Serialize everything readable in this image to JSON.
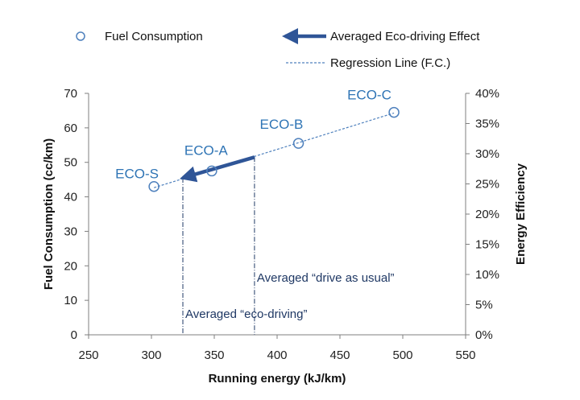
{
  "chart_data": {
    "type": "scatter",
    "title": "",
    "xlabel": "Running energy (kJ/km)",
    "ylabel": "Fuel Consumption (cc/km)",
    "y2label": "Energy Efficiency",
    "xlim": [
      250,
      550
    ],
    "ylim": [
      0,
      70
    ],
    "y2lim": [
      0,
      0.4
    ],
    "xticks": [
      "250",
      "300",
      "350",
      "400",
      "450",
      "500",
      "550"
    ],
    "yticks": [
      "0",
      "10",
      "20",
      "30",
      "40",
      "50",
      "60",
      "70"
    ],
    "y2ticks": [
      "0%",
      "5%",
      "10%",
      "15%",
      "20%",
      "25%",
      "30%",
      "35%",
      "40%"
    ],
    "series": [
      {
        "name": "Fuel Consumption",
        "points": [
          {
            "label": "ECO-S",
            "x": 302,
            "y": 43
          },
          {
            "label": "ECO-A",
            "x": 348,
            "y": 47.5
          },
          {
            "label": "ECO-B",
            "x": 417,
            "y": 55.5
          },
          {
            "label": "ECO-C",
            "x": 493,
            "y": 64.5
          }
        ]
      }
    ],
    "regression": {
      "name": "Regression Line (F.C.)",
      "x_start": 302,
      "x_end": 493
    },
    "effect_arrow": {
      "name": "Averaged Eco-driving Effect",
      "from": {
        "x": 382,
        "y": 51.5
      },
      "to": {
        "x": 325,
        "y": 45.5
      }
    },
    "vlines": [
      {
        "x": 325,
        "label": "Averaged “eco-driving”"
      },
      {
        "x": 382,
        "label": "Averaged “drive as usual”"
      }
    ],
    "legend": [
      {
        "name": "Fuel Consumption",
        "marker": "circle"
      },
      {
        "name": "Averaged Eco-driving Effect",
        "marker": "arrow"
      },
      {
        "name": "Regression Line (F.C.)",
        "marker": "dashed-line"
      }
    ],
    "colors": {
      "points": "#4f81bd",
      "labels": "#2e74b5",
      "arrow": "#2f5597",
      "vlines": "#1f3864",
      "annotations": "#1f3864",
      "axes": "#7f7f7f"
    }
  }
}
